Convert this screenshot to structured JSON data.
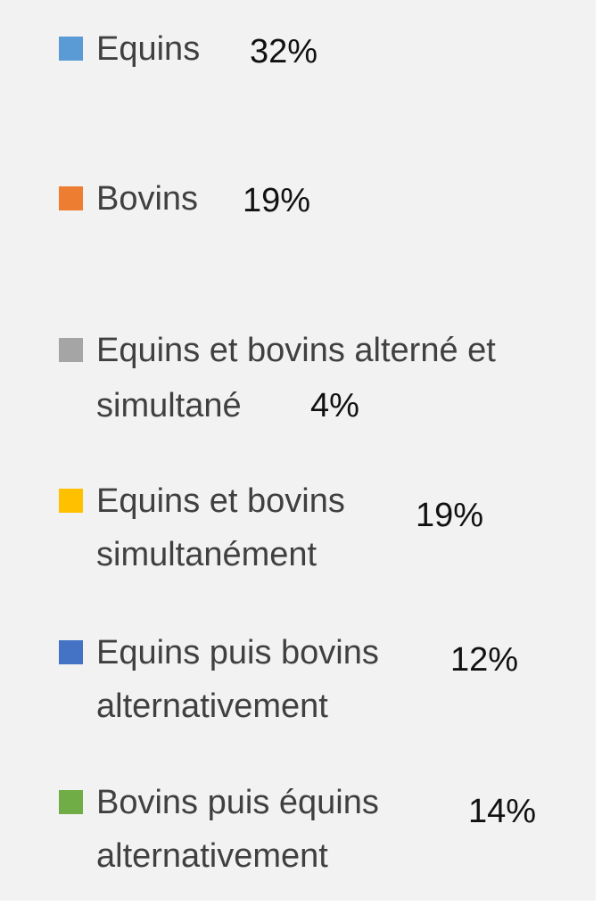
{
  "legend": {
    "items": [
      {
        "label": [
          "Equins"
        ],
        "value": "32%",
        "color": "#5b9bd5"
      },
      {
        "label": [
          "Bovins"
        ],
        "value": "19%",
        "color": "#ed7d31"
      },
      {
        "label": [
          "Equins et bovins alterné et",
          "simultané"
        ],
        "value": "4%",
        "color": "#a5a5a5"
      },
      {
        "label": [
          "Equins et bovins",
          "simultanément"
        ],
        "value": "19%",
        "color": "#ffc000"
      },
      {
        "label": [
          "Equins puis bovins",
          "alternativement"
        ],
        "value": "12%",
        "color": "#4472c4"
      },
      {
        "label": [
          "Bovins puis équins",
          "alternativement"
        ],
        "value": "14%",
        "color": "#70ad47"
      }
    ]
  }
}
